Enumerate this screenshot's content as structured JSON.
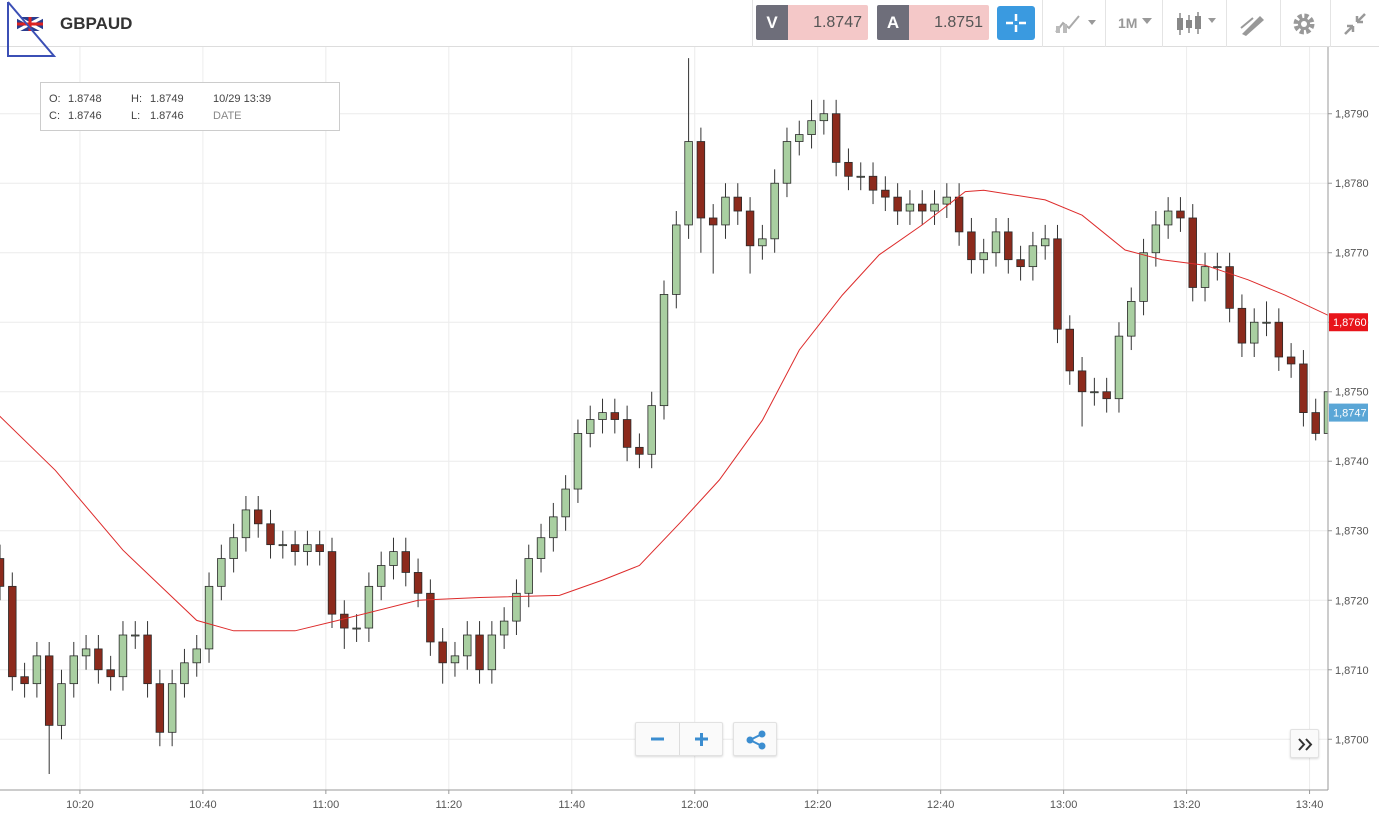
{
  "header": {
    "symbol": "GBPAUD",
    "bid_label": "V",
    "bid": "1.8747",
    "ask_label": "A",
    "ask": "1.8751",
    "timeframe": "1M"
  },
  "ohlc_box": {
    "o_label": "O:",
    "o": "1.8748",
    "h_label": "H:",
    "h": "1.8749",
    "date": "10/29 13:39",
    "c_label": "C:",
    "c": "1.8746",
    "l_label": "L:",
    "l": "1.8746",
    "date_label": "DATE"
  },
  "chart_data": {
    "type": "candlestick",
    "x": [
      607,
      609,
      611,
      613,
      615,
      617,
      619,
      621,
      623,
      625,
      627,
      629,
      631,
      633,
      635,
      637,
      639,
      641,
      643,
      645,
      647,
      649,
      651,
      653,
      655,
      657,
      659,
      661,
      663,
      665,
      667,
      669,
      671,
      673,
      675,
      677,
      679,
      681,
      683,
      685,
      687,
      689,
      691,
      693,
      695,
      697,
      699,
      701,
      703,
      705,
      707,
      709,
      711,
      713,
      715,
      717,
      719,
      721,
      723,
      725,
      727,
      729,
      731,
      733,
      735,
      737,
      739,
      741,
      743,
      745,
      747,
      749,
      751,
      753,
      755,
      757,
      759,
      761,
      763,
      765,
      767,
      769,
      771,
      773,
      775,
      777,
      779,
      781,
      783,
      785,
      787,
      789,
      791,
      793,
      795,
      797,
      799,
      801,
      803,
      805,
      807,
      809,
      811,
      813,
      815,
      817,
      819,
      821,
      823
    ],
    "open": [
      1.8726,
      1.8722,
      1.8709,
      1.8708,
      1.8712,
      1.8702,
      1.8708,
      1.8712,
      1.8713,
      1.871,
      1.8709,
      1.8715,
      1.8715,
      1.8708,
      1.8701,
      1.8708,
      1.8711,
      1.8713,
      1.8722,
      1.8726,
      1.8729,
      1.8733,
      1.8731,
      1.8728,
      1.8728,
      1.8727,
      1.8728,
      1.8727,
      1.8718,
      1.8716,
      1.8716,
      1.8722,
      1.8725,
      1.8727,
      1.8724,
      1.8721,
      1.8714,
      1.8711,
      1.8712,
      1.8715,
      1.871,
      1.8715,
      1.8717,
      1.8721,
      1.8726,
      1.8729,
      1.8732,
      1.8736,
      1.8744,
      1.8746,
      1.8747,
      1.8746,
      1.8742,
      1.8741,
      1.8748,
      1.8764,
      1.8774,
      1.8786,
      1.8775,
      1.8774,
      1.8778,
      1.8776,
      1.8771,
      1.8772,
      1.878,
      1.8786,
      1.8787,
      1.8789,
      1.879,
      1.8783,
      1.8781,
      1.8781,
      1.8779,
      1.8778,
      1.8776,
      1.8777,
      1.8776,
      1.8777,
      1.8778,
      1.8773,
      1.8769,
      1.877,
      1.8773,
      1.8769,
      1.8768,
      1.8771,
      1.8772,
      1.8759,
      1.8753,
      1.875,
      1.875,
      1.8749,
      1.8758,
      1.8763,
      1.877,
      1.8774,
      1.8776,
      1.8775,
      1.8765,
      1.8768,
      1.8768,
      1.8762,
      1.8757,
      1.876,
      1.876,
      1.8755,
      1.8754,
      1.8747,
      1.8744
    ],
    "high": [
      1.8728,
      1.8724,
      1.8711,
      1.8714,
      1.8714,
      1.871,
      1.8714,
      1.8715,
      1.8715,
      1.8712,
      1.8717,
      1.8717,
      1.8717,
      1.871,
      1.871,
      1.8713,
      1.8715,
      1.8724,
      1.8728,
      1.8731,
      1.8735,
      1.8735,
      1.8733,
      1.873,
      1.873,
      1.873,
      1.873,
      1.8729,
      1.872,
      1.8718,
      1.8724,
      1.8727,
      1.8729,
      1.8729,
      1.8726,
      1.8723,
      1.8716,
      1.8714,
      1.8717,
      1.8717,
      1.8717,
      1.8719,
      1.8723,
      1.8728,
      1.8731,
      1.8734,
      1.8738,
      1.8746,
      1.8748,
      1.8749,
      1.8749,
      1.8748,
      1.8744,
      1.875,
      1.8766,
      1.8776,
      1.8798,
      1.8788,
      1.8777,
      1.878,
      1.878,
      1.8778,
      1.8774,
      1.8782,
      1.8788,
      1.8789,
      1.8792,
      1.8792,
      1.8792,
      1.8785,
      1.8783,
      1.8783,
      1.8781,
      1.878,
      1.8779,
      1.8779,
      1.8779,
      1.878,
      1.878,
      1.8775,
      1.8772,
      1.8775,
      1.8775,
      1.8771,
      1.8773,
      1.8774,
      1.8774,
      1.8761,
      1.8755,
      1.8752,
      1.8752,
      1.876,
      1.8765,
      1.8772,
      1.8776,
      1.8778,
      1.8778,
      1.8777,
      1.877,
      1.877,
      1.877,
      1.8764,
      1.8762,
      1.8763,
      1.8762,
      1.8757,
      1.8756,
      1.8749,
      1.8752
    ],
    "low": [
      1.872,
      1.8707,
      1.8706,
      1.8706,
      1.8695,
      1.87,
      1.8706,
      1.871,
      1.8708,
      1.8707,
      1.8707,
      1.8713,
      1.8706,
      1.8699,
      1.8699,
      1.8706,
      1.8709,
      1.8711,
      1.872,
      1.8724,
      1.8727,
      1.8729,
      1.8726,
      1.8726,
      1.8725,
      1.8725,
      1.8725,
      1.8716,
      1.8713,
      1.8714,
      1.8714,
      1.872,
      1.8723,
      1.8722,
      1.8719,
      1.8712,
      1.8708,
      1.8709,
      1.871,
      1.8708,
      1.8708,
      1.8713,
      1.8715,
      1.8719,
      1.8724,
      1.8727,
      1.873,
      1.8734,
      1.8742,
      1.8744,
      1.8744,
      1.874,
      1.8739,
      1.8739,
      1.8746,
      1.8762,
      1.8772,
      1.877,
      1.8767,
      1.8772,
      1.8774,
      1.8767,
      1.8769,
      1.877,
      1.8778,
      1.8784,
      1.8785,
      1.8787,
      1.8781,
      1.8779,
      1.8779,
      1.8777,
      1.8776,
      1.8774,
      1.8774,
      1.8774,
      1.8774,
      1.8775,
      1.8771,
      1.8767,
      1.8767,
      1.8768,
      1.8767,
      1.8766,
      1.8766,
      1.8769,
      1.8757,
      1.8751,
      1.8745,
      1.8748,
      1.8747,
      1.8747,
      1.8756,
      1.8761,
      1.8768,
      1.8772,
      1.8773,
      1.8763,
      1.8763,
      1.8766,
      1.876,
      1.8755,
      1.8755,
      1.8758,
      1.8753,
      1.8752,
      1.8745,
      1.8743,
      1.8742
    ],
    "close": [
      1.8722,
      1.8709,
      1.8708,
      1.8712,
      1.8702,
      1.8708,
      1.8712,
      1.8713,
      1.871,
      1.8709,
      1.8715,
      1.8715,
      1.8708,
      1.8701,
      1.8708,
      1.8711,
      1.8713,
      1.8722,
      1.8726,
      1.8729,
      1.8733,
      1.8731,
      1.8728,
      1.8728,
      1.8727,
      1.8728,
      1.8727,
      1.8718,
      1.8716,
      1.8716,
      1.8722,
      1.8725,
      1.8727,
      1.8724,
      1.8721,
      1.8714,
      1.8711,
      1.8712,
      1.8715,
      1.871,
      1.8715,
      1.8717,
      1.8721,
      1.8726,
      1.8729,
      1.8732,
      1.8736,
      1.8744,
      1.8746,
      1.8747,
      1.8746,
      1.8742,
      1.8741,
      1.8748,
      1.8764,
      1.8774,
      1.8786,
      1.8775,
      1.8774,
      1.8778,
      1.8776,
      1.8771,
      1.8772,
      1.878,
      1.8786,
      1.8787,
      1.8789,
      1.879,
      1.8783,
      1.8781,
      1.8781,
      1.8779,
      1.8778,
      1.8776,
      1.8777,
      1.8776,
      1.8777,
      1.8778,
      1.8773,
      1.8769,
      1.877,
      1.8773,
      1.8769,
      1.8768,
      1.8771,
      1.8772,
      1.8759,
      1.8753,
      1.875,
      1.875,
      1.8749,
      1.8758,
      1.8763,
      1.877,
      1.8774,
      1.8776,
      1.8775,
      1.8765,
      1.8768,
      1.8768,
      1.8762,
      1.8757,
      1.876,
      1.876,
      1.8755,
      1.8754,
      1.8747,
      1.8744,
      1.875
    ],
    "up_color": "#a9cfa1",
    "down_color": "#8c2a1c",
    "overlay": {
      "color": "#dd2b2b",
      "x": [
        606,
        616,
        627,
        639,
        645,
        655,
        662,
        675,
        685,
        698,
        705,
        711,
        718,
        724,
        731,
        737,
        744,
        750,
        757,
        764,
        767,
        777,
        783,
        790,
        796,
        803,
        810,
        816,
        824
      ],
      "values": [
        1.87473,
        1.87387,
        1.87272,
        1.87171,
        1.87156,
        1.87156,
        1.87171,
        1.872,
        1.87204,
        1.87207,
        1.87229,
        1.8725,
        1.87315,
        1.87373,
        1.87459,
        1.8756,
        1.87639,
        1.87697,
        1.8774,
        1.87788,
        1.8779,
        1.87776,
        1.87754,
        1.87704,
        1.8769,
        1.87682,
        1.87661,
        1.87639,
        1.87606
      ]
    },
    "xlim": [
      607,
      823
    ],
    "ylim": [
      1.86927,
      1.87996
    ],
    "xticks": [
      {
        "value": 620,
        "label": "10:20"
      },
      {
        "value": 640,
        "label": "10:40"
      },
      {
        "value": 660,
        "label": "11:00"
      },
      {
        "value": 680,
        "label": "11:20"
      },
      {
        "value": 700,
        "label": "11:40"
      },
      {
        "value": 720,
        "label": "12:00"
      },
      {
        "value": 740,
        "label": "12:20"
      },
      {
        "value": 760,
        "label": "12:40"
      },
      {
        "value": 780,
        "label": "13:00"
      },
      {
        "value": 800,
        "label": "13:20"
      },
      {
        "value": 820,
        "label": "13:40"
      }
    ],
    "yticks": [
      {
        "value": 1.87,
        "label": "1,8700"
      },
      {
        "value": 1.871,
        "label": "1,8710"
      },
      {
        "value": 1.872,
        "label": "1,8720"
      },
      {
        "value": 1.873,
        "label": "1,8730"
      },
      {
        "value": 1.874,
        "label": "1,8740"
      },
      {
        "value": 1.875,
        "label": "1,8750"
      },
      {
        "value": 1.876,
        "label": "1,8760"
      },
      {
        "value": 1.877,
        "label": "1,8770"
      },
      {
        "value": 1.878,
        "label": "1,8780"
      },
      {
        "value": 1.879,
        "label": "1,8790"
      }
    ],
    "price_tags": [
      {
        "value": 1.876,
        "label": "1,8760",
        "color": "#e8141a"
      },
      {
        "value": 1.8747,
        "label": "1,8747",
        "color": "#5aa6d6"
      }
    ],
    "grid": true
  }
}
